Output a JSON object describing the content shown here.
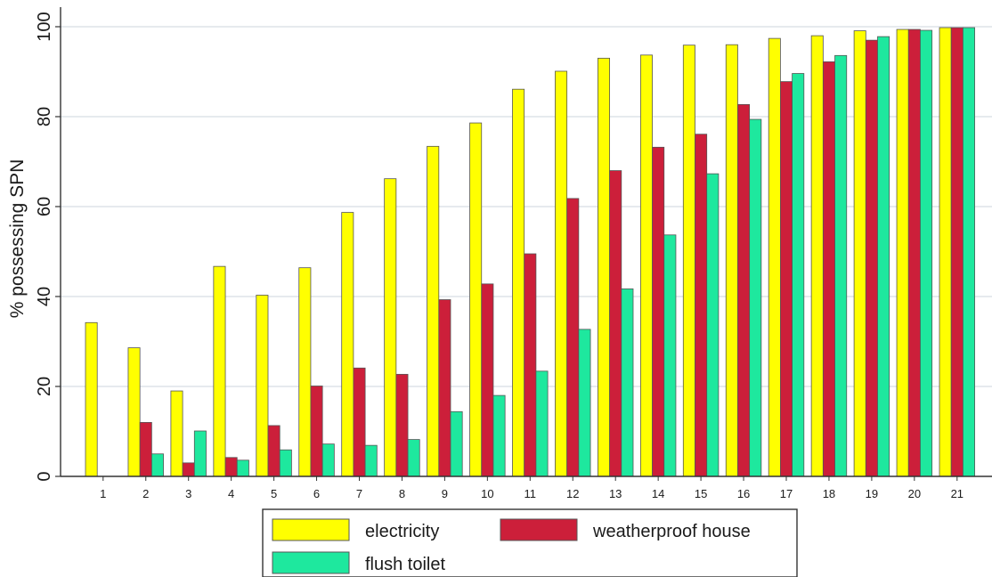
{
  "chart_data": {
    "type": "bar",
    "title": "",
    "xlabel": "",
    "ylabel": "% possessing SPN",
    "ylim": [
      0,
      100
    ],
    "yticks": [
      0,
      20,
      40,
      60,
      80,
      100
    ],
    "grid": true,
    "legend_position": "bottom",
    "categories": [
      "1",
      "2",
      "3",
      "4",
      "5",
      "6",
      "7",
      "8",
      "9",
      "10",
      "11",
      "12",
      "13",
      "14",
      "15",
      "16",
      "17",
      "18",
      "19",
      "20",
      "21"
    ],
    "series": [
      {
        "name": "electricity",
        "color": "#ffff00",
        "values": [
          34.2,
          28.6,
          19.0,
          46.7,
          40.3,
          46.4,
          58.7,
          66.2,
          73.4,
          78.6,
          86.1,
          90.1,
          93.0,
          93.7,
          95.9,
          96.0,
          97.4,
          98.0,
          99.1,
          99.4,
          99.8
        ]
      },
      {
        "name": "weatherproof house",
        "color": "#cc1f3a",
        "values": [
          0,
          12.0,
          3.0,
          4.2,
          11.3,
          20.1,
          24.1,
          22.7,
          39.3,
          42.8,
          49.5,
          61.8,
          68.0,
          73.2,
          76.1,
          82.7,
          87.8,
          92.2,
          97.0,
          99.4,
          99.8
        ]
      },
      {
        "name": "flush toilet",
        "color": "#1ee89e",
        "values": [
          0,
          5.0,
          10.1,
          3.6,
          5.9,
          7.2,
          6.9,
          8.2,
          14.4,
          18.0,
          23.4,
          32.7,
          41.7,
          53.7,
          67.3,
          79.4,
          89.6,
          93.6,
          97.8,
          99.2,
          99.8
        ]
      }
    ]
  }
}
